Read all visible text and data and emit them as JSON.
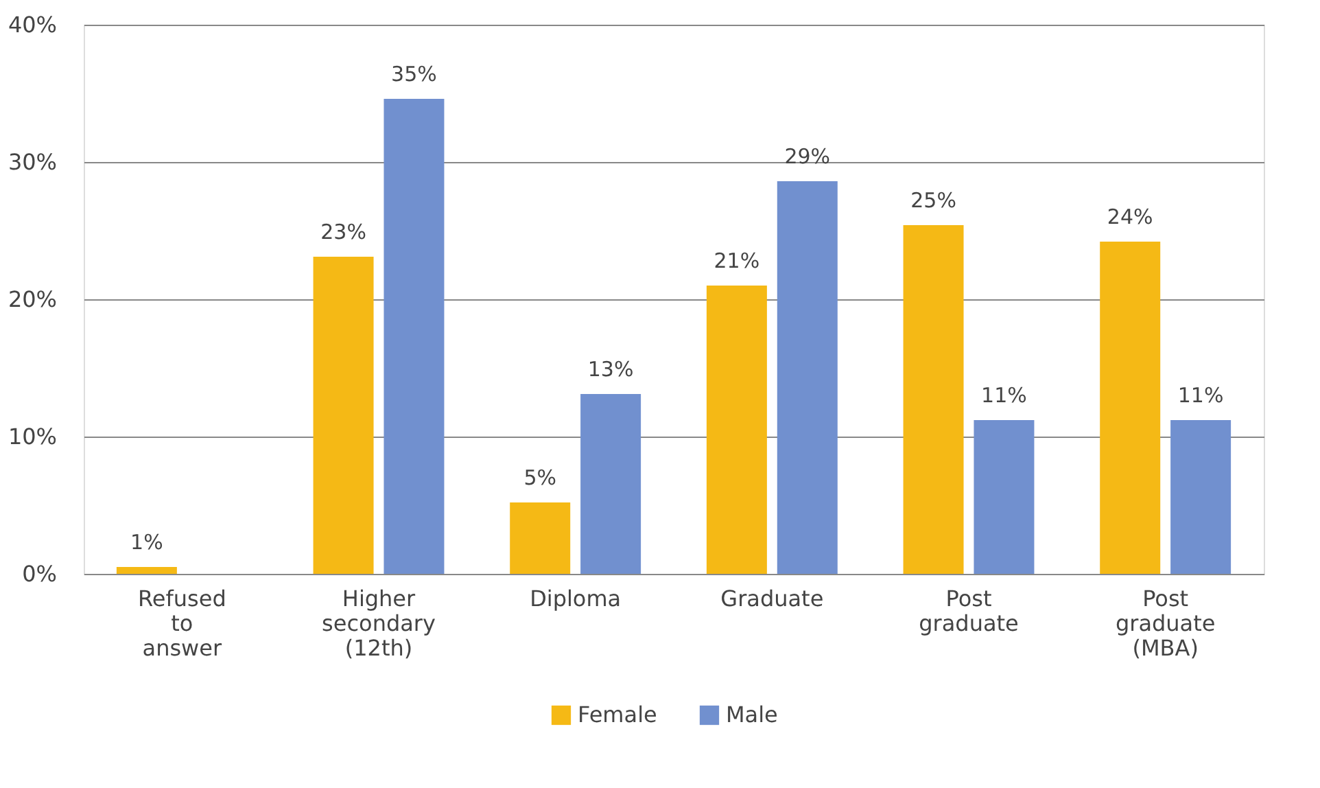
{
  "chart_data": {
    "type": "bar",
    "categories": [
      "Refused to answer",
      "Higher secondary (12th)",
      "Diploma",
      "Graduate",
      "Post graduate",
      "Post graduate (MBA)"
    ],
    "series": [
      {
        "name": "Female",
        "color": "#f5b915",
        "values": [
          0.5,
          23.1,
          5.2,
          21.0,
          25.4,
          24.2
        ],
        "value_labels": [
          "1%",
          "23%",
          "5%",
          "21%",
          "25%",
          "24%"
        ]
      },
      {
        "name": "Male",
        "color": "#7190cf",
        "values": [
          null,
          34.6,
          13.1,
          28.6,
          11.2,
          11.2
        ],
        "value_labels": [
          null,
          "35%",
          "13%",
          "29%",
          "11%",
          "11%"
        ]
      }
    ],
    "ylim": [
      0,
      40
    ],
    "yticks": [
      {
        "value": 0,
        "label": "0%"
      },
      {
        "value": 10,
        "label": "10%"
      },
      {
        "value": 20,
        "label": "20%"
      },
      {
        "value": 30,
        "label": "30%"
      },
      {
        "value": 40,
        "label": "40%"
      }
    ],
    "grid": "y",
    "legend": "bottom"
  }
}
